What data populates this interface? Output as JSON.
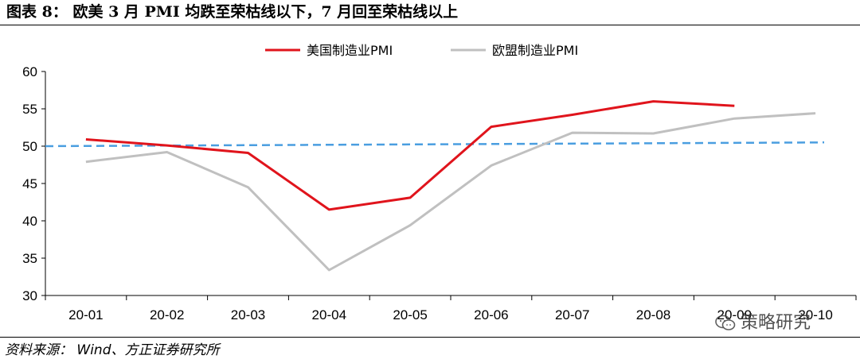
{
  "header": {
    "title": "图表 8：  欧美 3 月 PMI 均跌至荣枯线以下，7 月回至荣枯线以上"
  },
  "footer": {
    "source": "资料来源：  Wind、方正证券研究所"
  },
  "watermark": {
    "text": "策略研究"
  },
  "chart_data": {
    "type": "line",
    "categories": [
      "20-01",
      "20-02",
      "20-03",
      "20-04",
      "20-05",
      "20-06",
      "20-07",
      "20-08",
      "20-09",
      "20-10"
    ],
    "series": [
      {
        "name": "美国制造业PMI",
        "color": "#e0141c",
        "values": [
          50.9,
          50.1,
          49.1,
          41.5,
          43.1,
          52.6,
          54.2,
          56.0,
          55.4,
          null
        ]
      },
      {
        "name": "欧盟制造业PMI",
        "color": "#c0c0c0",
        "values": [
          47.9,
          49.2,
          44.5,
          33.4,
          39.4,
          47.4,
          51.8,
          51.7,
          53.7,
          54.4
        ]
      }
    ],
    "reference_line": {
      "color": "#4a9ee0",
      "style": "dashed",
      "from": 50.0,
      "to": 50.5
    },
    "yticks": [
      30,
      35,
      40,
      45,
      50,
      55,
      60
    ],
    "ylim": [
      30,
      60
    ],
    "title": "",
    "xlabel": "",
    "ylabel": "",
    "grid": false,
    "legend": "top-center"
  }
}
